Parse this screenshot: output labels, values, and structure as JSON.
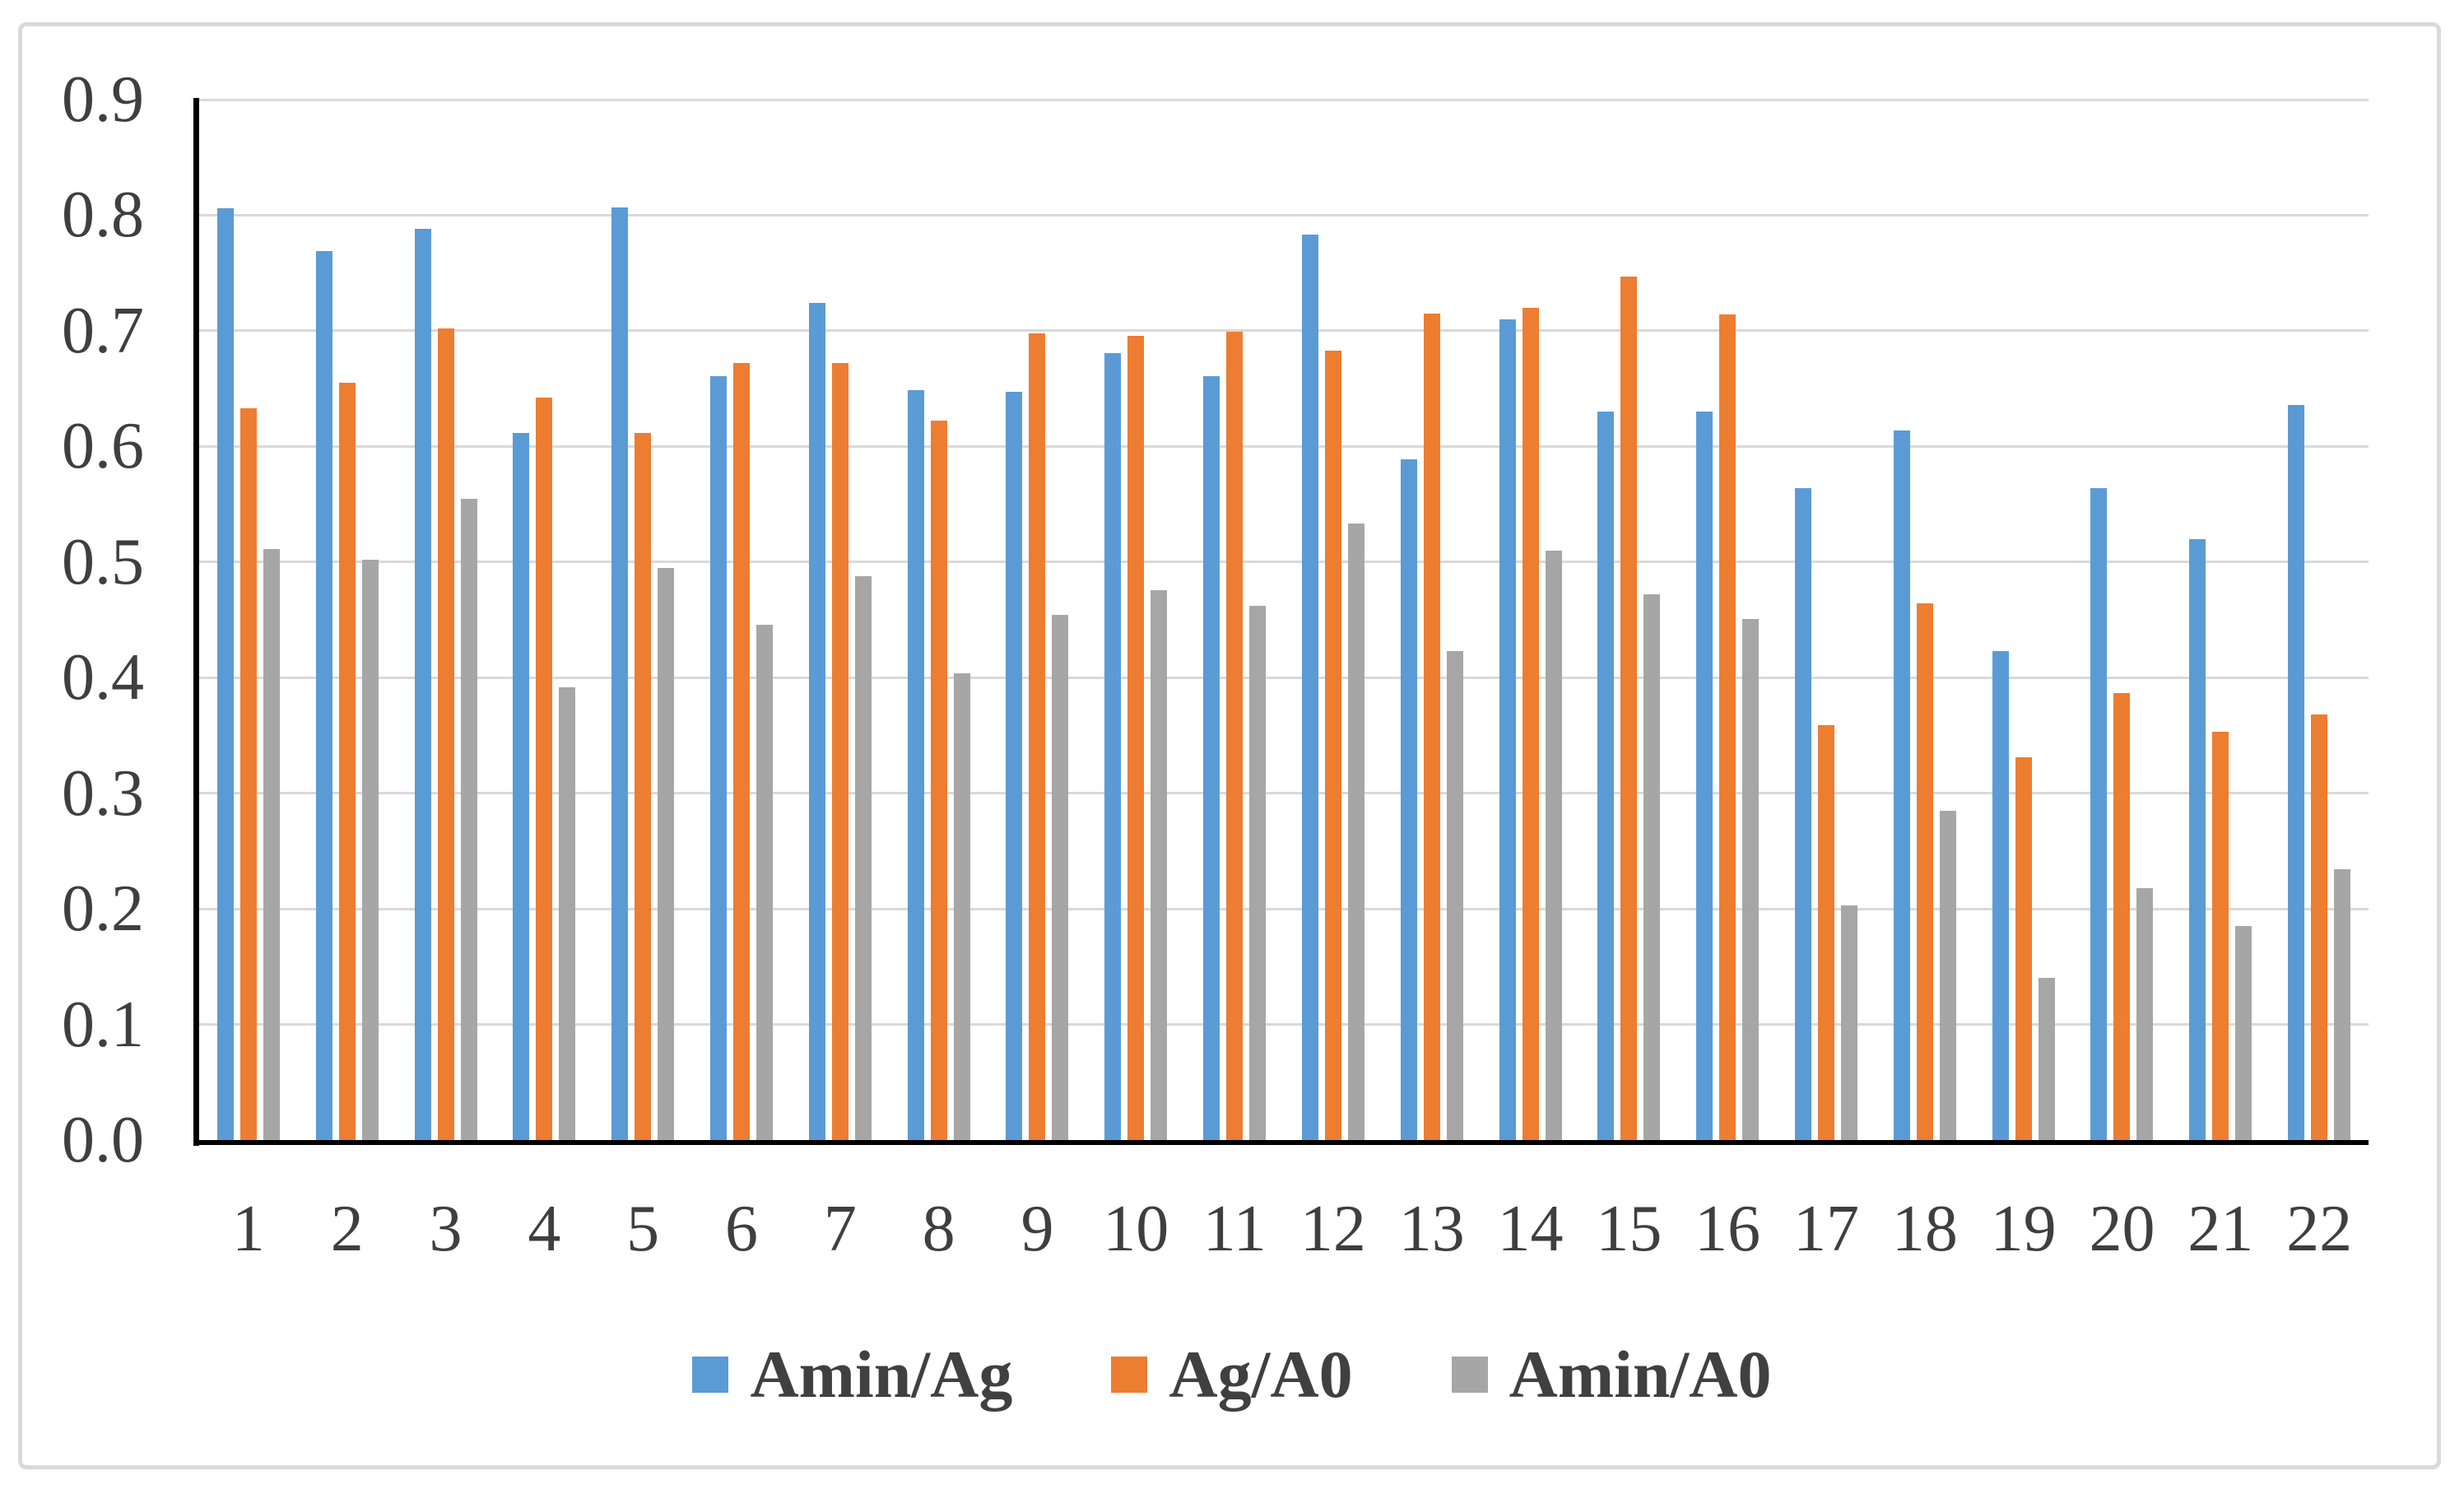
{
  "chart_data": {
    "type": "bar",
    "title": "",
    "xlabel": "",
    "ylabel": "",
    "categories": [
      "1",
      "2",
      "3",
      "4",
      "5",
      "6",
      "7",
      "8",
      "9",
      "10",
      "11",
      "12",
      "13",
      "14",
      "15",
      "16",
      "17",
      "18",
      "19",
      "20",
      "21",
      "22"
    ],
    "series": [
      {
        "key": "amin-ag",
        "name": "Amin/Ag",
        "color": "#5B9BD5",
        "values": [
          0.806,
          0.769,
          0.788,
          0.612,
          0.807,
          0.661,
          0.724,
          0.649,
          0.647,
          0.681,
          0.661,
          0.783,
          0.589,
          0.71,
          0.63,
          0.63,
          0.564,
          0.614,
          0.423,
          0.564,
          0.52,
          0.636
        ]
      },
      {
        "key": "ag-a0",
        "name": "Ag/A0",
        "color": "#ED7D31",
        "values": [
          0.633,
          0.655,
          0.702,
          0.642,
          0.612,
          0.672,
          0.672,
          0.622,
          0.698,
          0.696,
          0.699,
          0.683,
          0.715,
          0.72,
          0.747,
          0.714,
          0.359,
          0.464,
          0.331,
          0.387,
          0.353,
          0.368
        ]
      },
      {
        "key": "amin-a0",
        "name": "Amin/A0",
        "color": "#A6A6A6",
        "values": [
          0.511,
          0.502,
          0.555,
          0.392,
          0.495,
          0.446,
          0.488,
          0.404,
          0.454,
          0.476,
          0.462,
          0.533,
          0.423,
          0.51,
          0.472,
          0.451,
          0.203,
          0.285,
          0.14,
          0.218,
          0.185,
          0.234
        ]
      }
    ],
    "ylim": [
      0,
      0.9
    ],
    "ytick_step": 0.1,
    "ytick_labels": [
      "0.0",
      "0.1",
      "0.2",
      "0.3",
      "0.4",
      "0.5",
      "0.6",
      "0.7",
      "0.8",
      "0.9"
    ],
    "grid": "horizontal",
    "legend_position": "bottom",
    "axis_color": "#000000",
    "gridline_color": "#D9D9D9",
    "tick_label_color": "#3F3F3F",
    "frame_border_color": "#D9D9D9"
  }
}
